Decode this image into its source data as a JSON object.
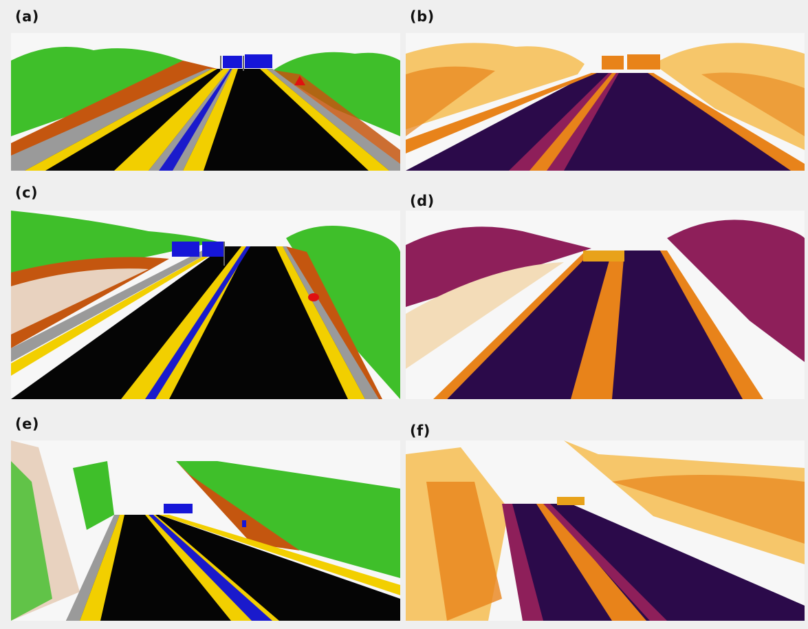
{
  "figure": {
    "panels": [
      {
        "id": "a",
        "label": "(a)",
        "style": "semantic"
      },
      {
        "id": "b",
        "label": "(b)",
        "style": "intensity"
      },
      {
        "id": "c",
        "label": "(c)",
        "style": "semantic"
      },
      {
        "id": "d",
        "label": "(d)",
        "style": "intensity"
      },
      {
        "id": "e",
        "label": "(e)",
        "style": "semantic"
      },
      {
        "id": "f",
        "label": "(f)",
        "style": "intensity"
      }
    ]
  },
  "colors": {
    "background": "#efefef",
    "road": "#050505",
    "lane_yellow": "#f2cf00",
    "shoulder_gray": "#9a9a9a",
    "median_blue": "#1a1acc",
    "vegetation": "#3fbf2a",
    "slope_orange": "#c4560f",
    "sign_blue": "#1616d8",
    "sign_red": "#e01010",
    "intensity_dark": "#2b0a4a",
    "intensity_mid": "#8e1f5a",
    "intensity_orange": "#e8831a",
    "intensity_light": "#f6c66a"
  }
}
